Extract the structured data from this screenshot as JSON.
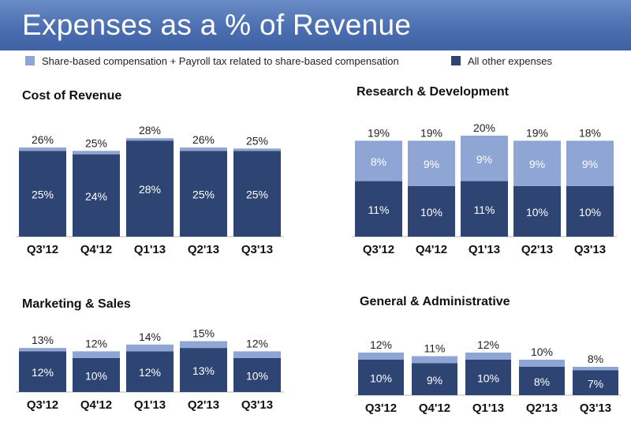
{
  "header": {
    "title": "Expenses as a % of Revenue"
  },
  "legend": {
    "items": [
      {
        "label": "Share-based compensation + Payroll tax related to share-based compensation",
        "color": "#8fa6d4"
      },
      {
        "label": "All other expenses",
        "color": "#2e4473"
      }
    ]
  },
  "colors": {
    "sbc": "#8fa6d4",
    "other": "#2e4473",
    "title_bar": "#4b6fb0"
  },
  "chart_data": [
    {
      "type": "bar",
      "stacked": true,
      "title": "Cost of Revenue",
      "categories": [
        "Q3'12",
        "Q4'12",
        "Q1'13",
        "Q2'13",
        "Q3'13"
      ],
      "totals": [
        26,
        25,
        28,
        26,
        25
      ],
      "total_labels": [
        "26%",
        "25%",
        "28%",
        "26%",
        "25%"
      ],
      "series": [
        {
          "name": "All other expenses",
          "values": [
            25,
            24,
            28,
            25,
            25
          ],
          "labels": [
            "25%",
            "24%",
            "28%",
            "25%",
            "25%"
          ]
        },
        {
          "name": "Share-based compensation + Payroll tax related to share-based compensation",
          "values": [
            1,
            1,
            0,
            1,
            0
          ],
          "labels": [
            "",
            "",
            "",
            "",
            ""
          ]
        }
      ]
    },
    {
      "type": "bar",
      "stacked": true,
      "title": "Research & Development",
      "categories": [
        "Q3'12",
        "Q4'12",
        "Q1'13",
        "Q2'13",
        "Q3'13"
      ],
      "totals": [
        19,
        19,
        20,
        19,
        18
      ],
      "total_labels": [
        "19%",
        "19%",
        "20%",
        "19%",
        "18%"
      ],
      "series": [
        {
          "name": "All other expenses",
          "values": [
            11,
            10,
            11,
            10,
            10
          ],
          "labels": [
            "11%",
            "10%",
            "11%",
            "10%",
            "10%"
          ]
        },
        {
          "name": "Share-based compensation + Payroll tax related to share-based compensation",
          "values": [
            8,
            9,
            9,
            9,
            9
          ],
          "labels": [
            "8%",
            "9%",
            "9%",
            "9%",
            "9%"
          ]
        }
      ]
    },
    {
      "type": "bar",
      "stacked": true,
      "title": "Marketing & Sales",
      "categories": [
        "Q3'12",
        "Q4'12",
        "Q1'13",
        "Q2'13",
        "Q3'13"
      ],
      "totals": [
        13,
        12,
        14,
        15,
        12
      ],
      "total_labels": [
        "13%",
        "12%",
        "14%",
        "15%",
        "12%"
      ],
      "series": [
        {
          "name": "All other expenses",
          "values": [
            12,
            10,
            12,
            13,
            10
          ],
          "labels": [
            "12%",
            "10%",
            "12%",
            "13%",
            "10%"
          ]
        },
        {
          "name": "Share-based compensation + Payroll tax related to share-based compensation",
          "values": [
            1,
            2,
            2,
            2,
            2
          ],
          "labels": [
            "",
            "",
            "",
            "",
            ""
          ]
        }
      ]
    },
    {
      "type": "bar",
      "stacked": true,
      "title": "General & Administrative",
      "categories": [
        "Q3'12",
        "Q4'12",
        "Q1'13",
        "Q2'13",
        "Q3'13"
      ],
      "totals": [
        12,
        11,
        12,
        10,
        8
      ],
      "total_labels": [
        "12%",
        "11%",
        "12%",
        "10%",
        "8%"
      ],
      "series": [
        {
          "name": "All other expenses",
          "values": [
            10,
            9,
            10,
            8,
            7
          ],
          "labels": [
            "10%",
            "9%",
            "10%",
            "8%",
            "7%"
          ]
        },
        {
          "name": "Share-based compensation + Payroll tax related to share-based compensation",
          "values": [
            2,
            2,
            2,
            2,
            1
          ],
          "labels": [
            "",
            "",
            "",
            "",
            ""
          ]
        }
      ]
    }
  ]
}
